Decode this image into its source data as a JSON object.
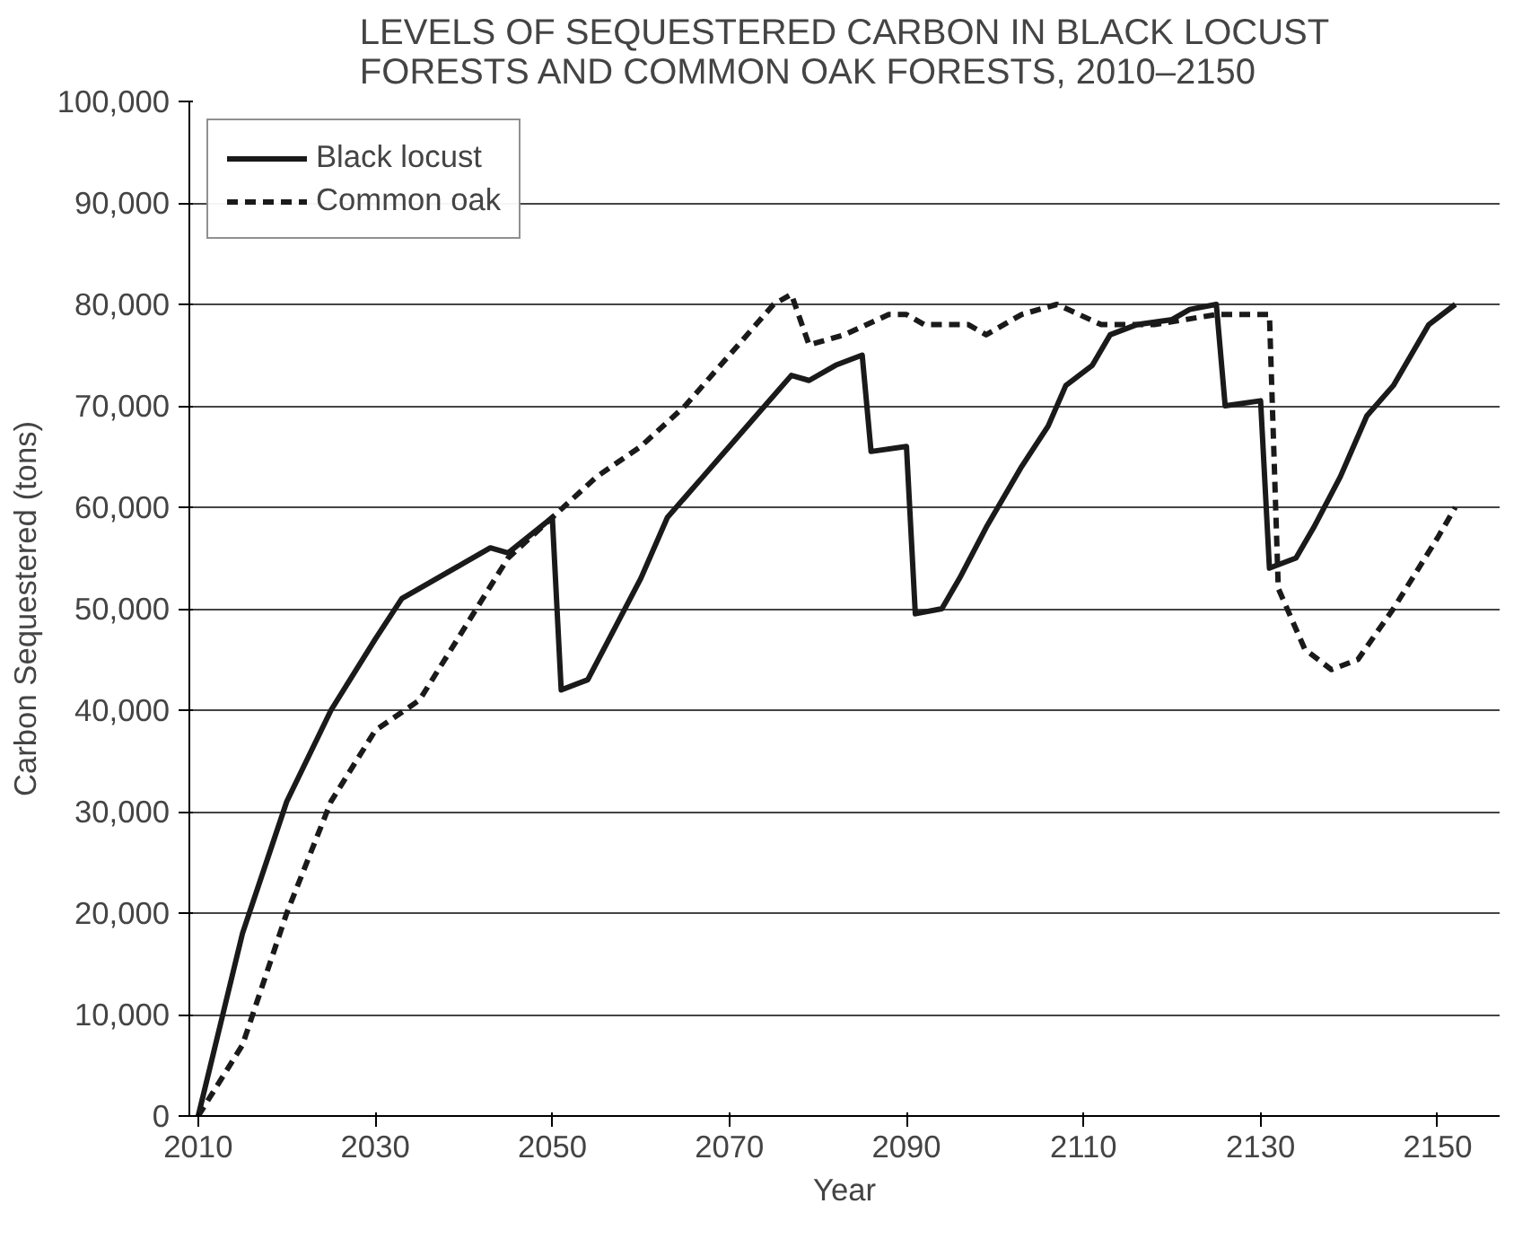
{
  "chart_data": {
    "type": "line",
    "title": "LEVELS OF SEQUESTERED CARBON IN BLACK LOCUST\nFORESTS AND COMMON OAK FORESTS, 2010–2150",
    "xlabel": "Year",
    "ylabel": "Carbon Sequestered (tons)",
    "xlim": [
      2009,
      2157
    ],
    "ylim": [
      0,
      100000
    ],
    "xticks": [
      2010,
      2030,
      2050,
      2070,
      2090,
      2110,
      2130,
      2150
    ],
    "yticks": [
      {
        "value": 0,
        "label": "0"
      },
      {
        "value": 10000,
        "label": "10,000"
      },
      {
        "value": 20000,
        "label": "20,000"
      },
      {
        "value": 30000,
        "label": "30,000"
      },
      {
        "value": 40000,
        "label": "40,000"
      },
      {
        "value": 50000,
        "label": "50,000"
      },
      {
        "value": 60000,
        "label": "60,000"
      },
      {
        "value": 70000,
        "label": "70,000"
      },
      {
        "value": 80000,
        "label": "80,000"
      },
      {
        "value": 90000,
        "label": "90,000"
      },
      {
        "value": 100000,
        "label": "100,000"
      }
    ],
    "grid": "y",
    "legend": "top left",
    "marker": "none",
    "series": [
      {
        "name": "Black locust",
        "color": "#1a1a1a",
        "line_style": "solid",
        "x": [
          2010,
          2015,
          2020,
          2025,
          2030,
          2033,
          2035,
          2040,
          2043,
          2045,
          2050,
          2051,
          2054,
          2060,
          2063,
          2067,
          2070,
          2074,
          2077,
          2079,
          2082,
          2085,
          2086,
          2090,
          2091,
          2094,
          2096,
          2099,
          2103,
          2106,
          2108,
          2111,
          2113,
          2116,
          2120,
          2122,
          2125,
          2126,
          2130,
          2131,
          2134,
          2136,
          2139,
          2142,
          2145,
          2149,
          2152
        ],
        "values": [
          0,
          18000,
          31000,
          40000,
          47000,
          51000,
          52000,
          54500,
          56000,
          55500,
          59000,
          42000,
          43000,
          53000,
          59000,
          63000,
          66000,
          70000,
          73000,
          72500,
          74000,
          75000,
          65500,
          66000,
          49500,
          50000,
          53000,
          58000,
          64000,
          68000,
          72000,
          74000,
          77000,
          78000,
          78500,
          79500,
          80000,
          70000,
          70500,
          54000,
          55000,
          58000,
          63000,
          69000,
          72000,
          78000,
          80000
        ]
      },
      {
        "name": "Common oak",
        "color": "#1a1a1a",
        "line_style": "dashed",
        "x": [
          2010,
          2015,
          2020,
          2025,
          2030,
          2035,
          2040,
          2045,
          2050,
          2055,
          2060,
          2065,
          2070,
          2075,
          2077,
          2079,
          2083,
          2088,
          2090,
          2092,
          2097,
          2099,
          2103,
          2107,
          2112,
          2118,
          2125,
          2131,
          2132,
          2135,
          2138,
          2141,
          2145,
          2150,
          2152
        ],
        "values": [
          0,
          7000,
          20000,
          31000,
          38000,
          41000,
          48000,
          55000,
          59000,
          63000,
          66000,
          70000,
          75000,
          80000,
          81000,
          76000,
          77000,
          79000,
          79000,
          78000,
          78000,
          77000,
          79000,
          80000,
          78000,
          78000,
          79000,
          79000,
          52000,
          46000,
          44000,
          45000,
          50000,
          57000,
          60000
        ]
      }
    ]
  }
}
